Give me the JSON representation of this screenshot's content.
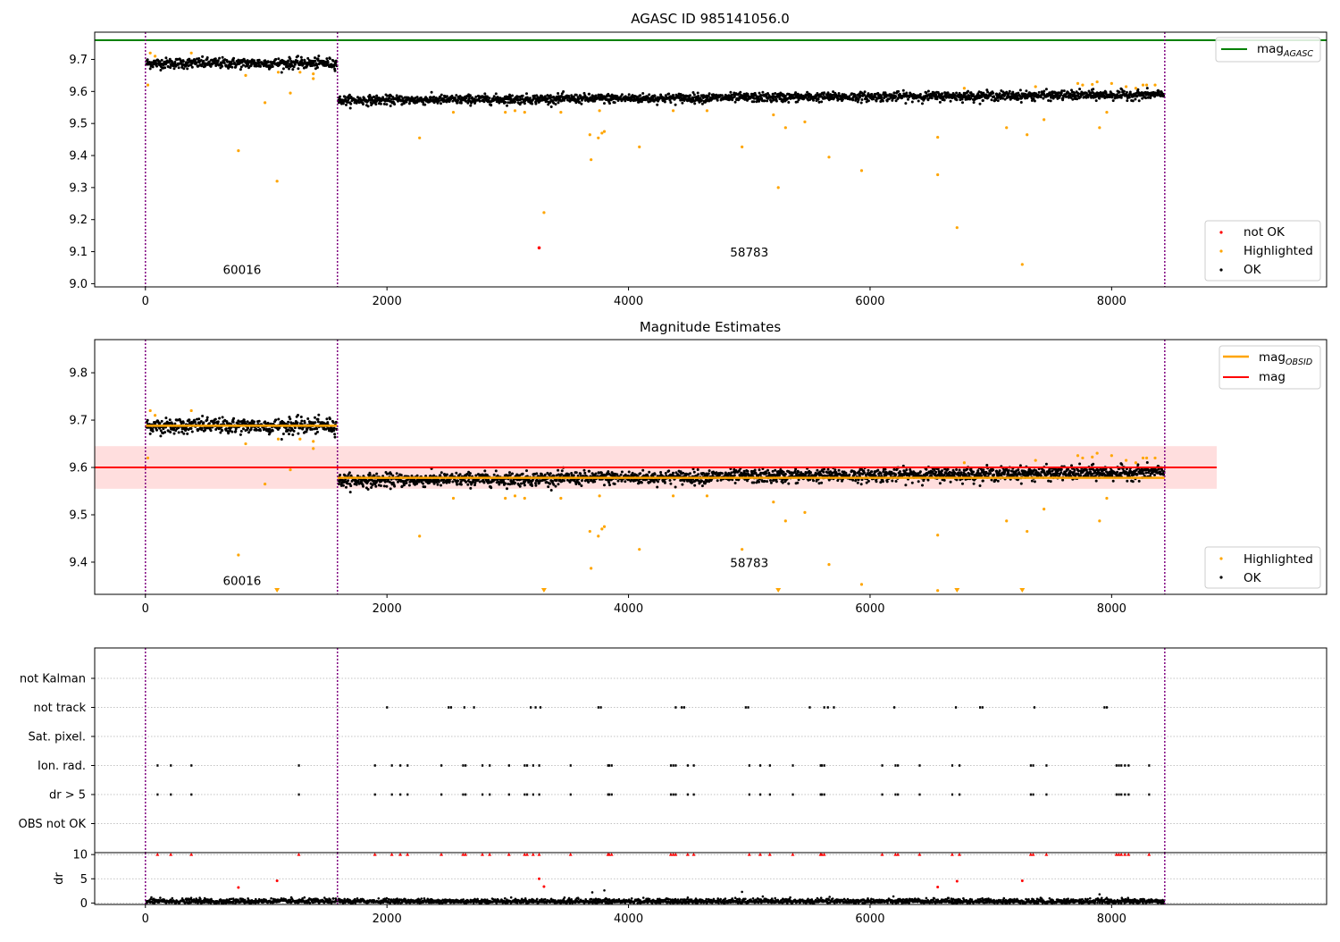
{
  "colors": {
    "ok": "#000000",
    "highlighted": "#ffa500",
    "not_ok": "#ff0000",
    "agasc_line": "#008000",
    "mag_line": "#ff0000",
    "mag_band": "#ffdede",
    "obs_boundary": "#800080",
    "grid": "#b0b0b0"
  },
  "chart_data": [
    {
      "type": "scatter",
      "title": "AGASC ID 985141056.0",
      "xlabel": "",
      "ylabel": "",
      "xlim": [
        -420,
        9780
      ],
      "ylim": [
        8.99,
        9.785
      ],
      "xticks": [
        0,
        2000,
        4000,
        6000,
        8000
      ],
      "yticks": [
        9.0,
        9.1,
        9.2,
        9.3,
        9.4,
        9.5,
        9.6,
        9.7
      ],
      "agasc_mag": 9.76,
      "obs_boundaries": [
        0,
        1590,
        8440
      ],
      "observations": [
        {
          "obsid": "60016",
          "x_start": 0,
          "x_end": 1590,
          "mag": 9.688,
          "spread": 0.015
        },
        {
          "obsid": "58783",
          "x_start": 1590,
          "x_end": 8440,
          "mag_start": 9.572,
          "mag_end": 9.59,
          "spread": 0.013
        }
      ],
      "obsid_labels": [
        {
          "text": "60016",
          "x": 800,
          "y": 9.03
        },
        {
          "text": "58783",
          "x": 5000,
          "y": 9.085
        }
      ],
      "highlighted_points": [
        [
          20,
          9.62
        ],
        [
          40,
          9.72
        ],
        [
          80,
          9.71
        ],
        [
          380,
          9.72
        ],
        [
          770,
          9.415
        ],
        [
          830,
          9.65
        ],
        [
          990,
          9.565
        ],
        [
          1090,
          9.32
        ],
        [
          1100,
          9.66
        ],
        [
          1200,
          9.595
        ],
        [
          1280,
          9.66
        ],
        [
          1390,
          9.655
        ],
        [
          1390,
          9.64
        ],
        [
          2270,
          9.455
        ],
        [
          2550,
          9.535
        ],
        [
          2980,
          9.535
        ],
        [
          3060,
          9.54
        ],
        [
          3140,
          9.535
        ],
        [
          3300,
          9.222
        ],
        [
          3440,
          9.535
        ],
        [
          3680,
          9.465
        ],
        [
          3690,
          9.387
        ],
        [
          3750,
          9.455
        ],
        [
          3760,
          9.54
        ],
        [
          3780,
          9.47
        ],
        [
          3800,
          9.475
        ],
        [
          4090,
          9.427
        ],
        [
          4370,
          9.54
        ],
        [
          4650,
          9.54
        ],
        [
          4940,
          9.427
        ],
        [
          5200,
          9.527
        ],
        [
          5240,
          9.3
        ],
        [
          5300,
          9.487
        ],
        [
          5460,
          9.505
        ],
        [
          5660,
          9.395
        ],
        [
          5930,
          9.353
        ],
        [
          6560,
          9.457
        ],
        [
          6560,
          9.34
        ],
        [
          6720,
          9.175
        ],
        [
          6780,
          9.61
        ],
        [
          7130,
          9.487
        ],
        [
          7260,
          9.06
        ],
        [
          7300,
          9.465
        ],
        [
          7370,
          9.615
        ],
        [
          7440,
          9.512
        ],
        [
          7720,
          9.625
        ],
        [
          7760,
          9.62
        ],
        [
          7840,
          9.622
        ],
        [
          7880,
          9.63
        ],
        [
          7900,
          9.487
        ],
        [
          7960,
          9.535
        ],
        [
          8000,
          9.625
        ],
        [
          8120,
          9.615
        ],
        [
          8200,
          9.61
        ],
        [
          8260,
          9.62
        ],
        [
          8290,
          9.62
        ],
        [
          8360,
          9.62
        ]
      ],
      "not_ok_points": [
        [
          3260,
          9.112
        ]
      ],
      "legends": [
        {
          "position": "top-right",
          "entries": [
            {
              "label": "mag",
              "subscript": "AGASC",
              "marker": "line",
              "color": "#008000"
            }
          ]
        },
        {
          "position": "bottom-right",
          "entries": [
            {
              "label": "not OK",
              "marker": "dot",
              "color": "#ff0000"
            },
            {
              "label": "Highlighted",
              "marker": "dot",
              "color": "#ffa500"
            },
            {
              "label": "OK",
              "marker": "dot",
              "color": "#000000"
            }
          ]
        }
      ]
    },
    {
      "type": "scatter",
      "title": "Magnitude Estimates",
      "xlabel": "",
      "ylabel": "",
      "xlim": [
        -420,
        9780
      ],
      "ylim": [
        9.332,
        9.87
      ],
      "xticks": [
        0,
        2000,
        4000,
        6000,
        8000
      ],
      "yticks": [
        9.4,
        9.5,
        9.6,
        9.7,
        9.8
      ],
      "mag": 9.6,
      "mag_band": [
        9.555,
        9.645
      ],
      "mag_band_x_end": 8870,
      "obs_boundaries": [
        0,
        1590,
        8440
      ],
      "mag_obsid": [
        {
          "x_start": 0,
          "x_end": 1590,
          "mag": 9.688
        },
        {
          "x_start": 1590,
          "x_end": 8440,
          "mag": 9.578
        }
      ],
      "obsid_labels": [
        {
          "text": "60016",
          "x": 800,
          "y": 9.352
        },
        {
          "text": "58783",
          "x": 5000,
          "y": 9.39
        }
      ],
      "clipped_points_x": [
        1090,
        3300,
        5240,
        6720,
        7260
      ],
      "legends": [
        {
          "position": "top-right",
          "entries": [
            {
              "label": "mag",
              "subscript": "OBSID",
              "marker": "line",
              "color": "#ffa500"
            },
            {
              "label": "mag",
              "marker": "line",
              "color": "#ff0000"
            }
          ]
        },
        {
          "position": "bottom-right",
          "entries": [
            {
              "label": "Highlighted",
              "marker": "dot",
              "color": "#ffa500"
            },
            {
              "label": "OK",
              "marker": "dot",
              "color": "#000000"
            }
          ]
        }
      ]
    },
    {
      "type": "scatter",
      "title": "",
      "xlim": [
        -420,
        9780
      ],
      "flag_categories": [
        "not Kalman",
        "not track",
        "Sat. pixel.",
        "Ion. rad.",
        "dr > 5",
        "OBS not OK"
      ],
      "obs_boundaries": [
        0,
        1590,
        8440
      ],
      "flags": {
        "not track": [
          2000,
          2510,
          2530,
          2640,
          2720,
          3190,
          3230,
          3270,
          3750,
          3770,
          4390,
          4440,
          4460,
          4970,
          4990,
          5500,
          5620,
          5650,
          5700,
          6200,
          6710,
          6910,
          6930,
          7360,
          7940,
          7960
        ],
        "Ion. rad.": [
          100,
          210,
          380,
          1270,
          1900,
          2040,
          2110,
          2170,
          2450,
          2630,
          2650,
          2790,
          2850,
          3010,
          3140,
          3160,
          3210,
          3260,
          3520,
          3830,
          3840,
          3860,
          4350,
          4370,
          4390,
          4490,
          4540,
          5000,
          5090,
          5170,
          5360,
          5590,
          5600,
          5620,
          6100,
          6210,
          6230,
          6410,
          6680,
          6740,
          7330,
          7350,
          7460,
          8040,
          8060,
          8080,
          8110,
          8140,
          8310
        ],
        "dr > 5": [
          100,
          210,
          380,
          1270,
          1900,
          2040,
          2110,
          2170,
          2450,
          2630,
          2650,
          2790,
          2850,
          3010,
          3140,
          3160,
          3210,
          3260,
          3520,
          3830,
          3840,
          3860,
          4350,
          4370,
          4390,
          4490,
          4540,
          5000,
          5090,
          5170,
          5360,
          5590,
          5600,
          5620,
          6100,
          6210,
          6230,
          6410,
          6680,
          6740,
          7330,
          7350,
          7460,
          8040,
          8060,
          8080,
          8110,
          8140,
          8310
        ]
      }
    },
    {
      "type": "scatter",
      "title": "",
      "ylabel": "dr",
      "xlim": [
        -420,
        9780
      ],
      "ylim": [
        -0.3,
        10.4
      ],
      "xticks": [
        0,
        2000,
        4000,
        6000,
        8000
      ],
      "yticks": [
        0,
        5,
        10
      ],
      "dr_cap": 10,
      "dr_outliers": [
        [
          770,
          3.2
        ],
        [
          1090,
          4.6
        ],
        [
          3260,
          5.0
        ],
        [
          3300,
          3.4
        ],
        [
          6560,
          3.3
        ],
        [
          6720,
          4.5
        ],
        [
          7260,
          4.6
        ]
      ],
      "dr_black_outliers": [
        [
          3700,
          2.2
        ],
        [
          3800,
          2.6
        ],
        [
          4940,
          2.3
        ],
        [
          7900,
          1.8
        ]
      ],
      "obs_boundaries": [
        0,
        1590,
        8440
      ]
    }
  ]
}
